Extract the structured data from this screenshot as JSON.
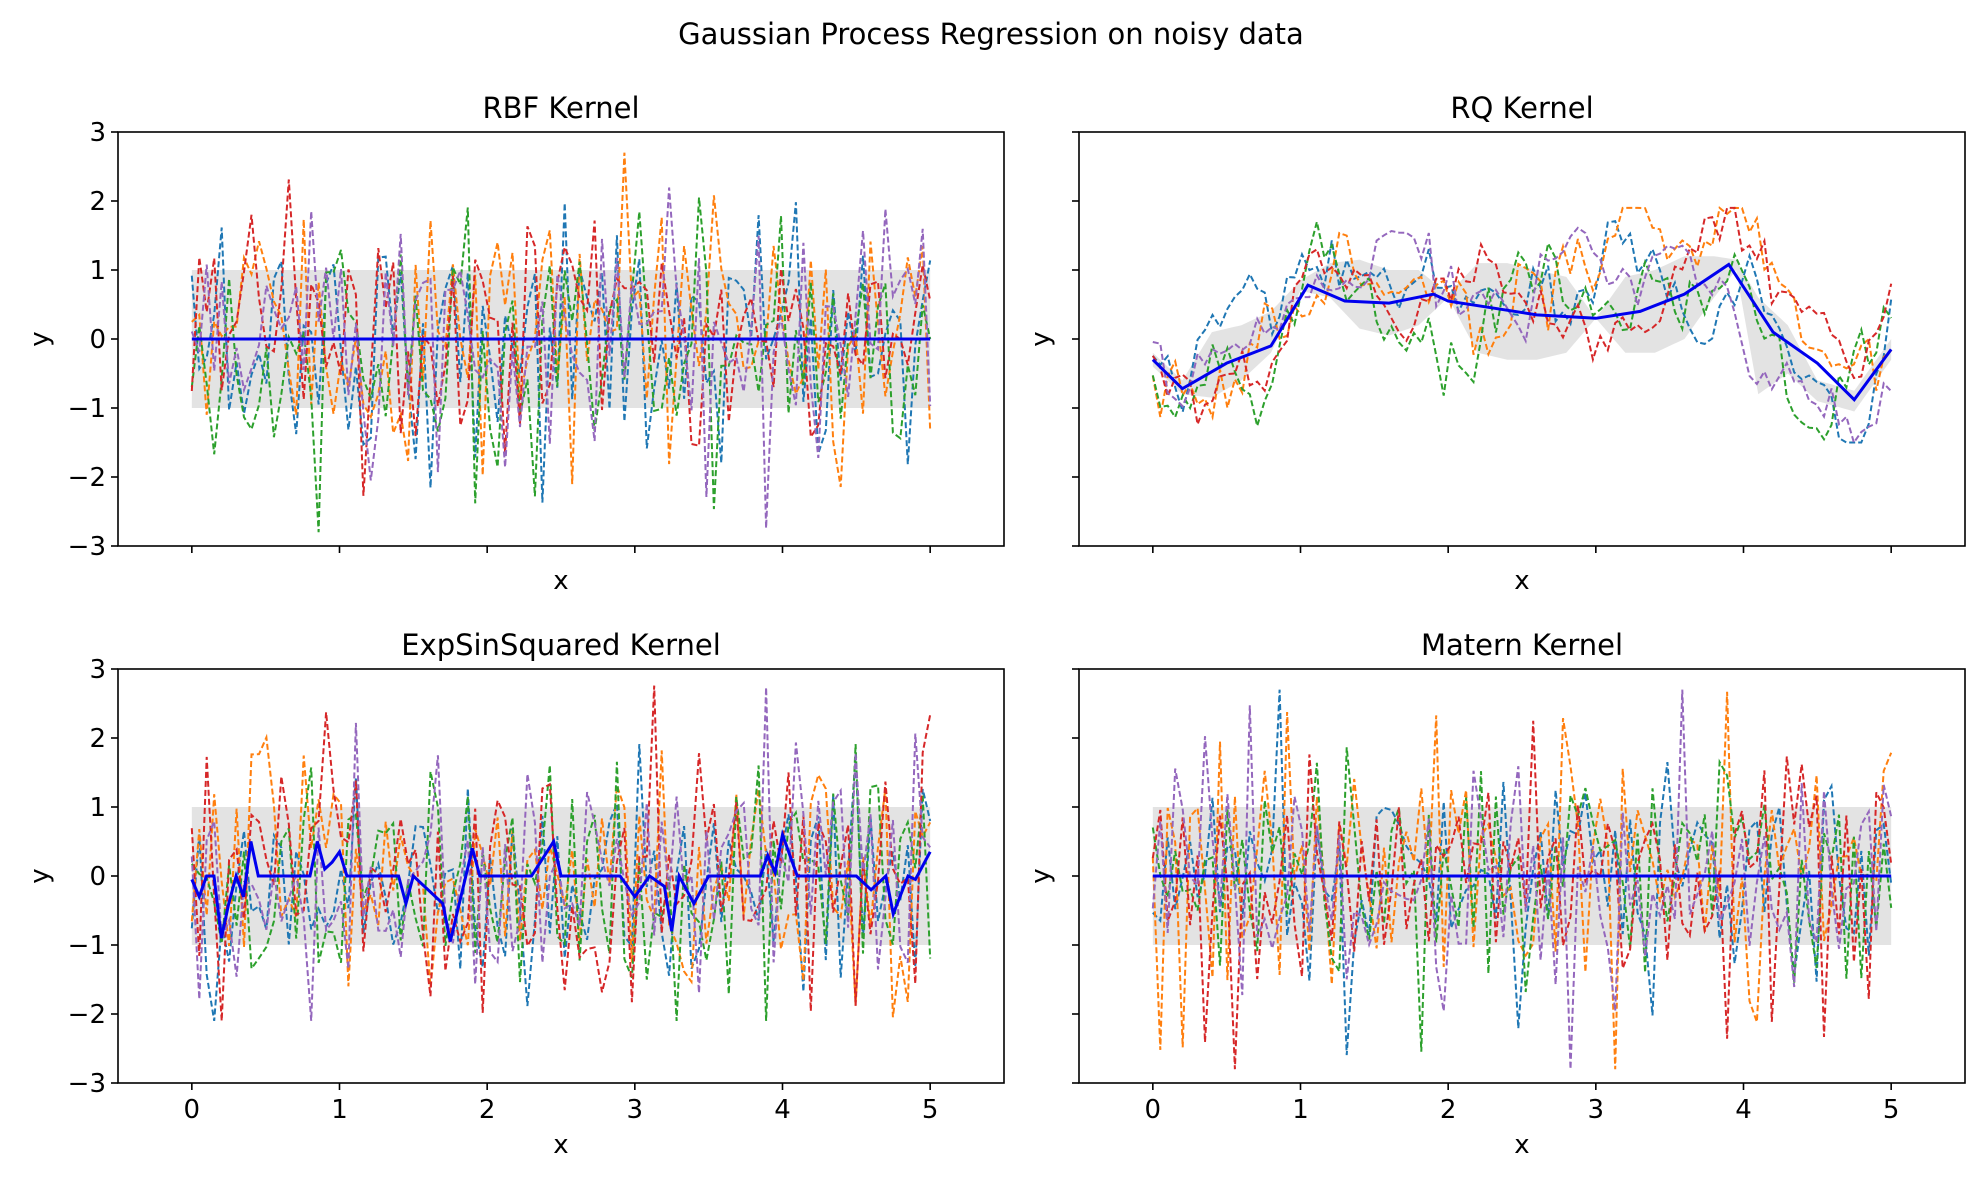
{
  "figure": {
    "suptitle": "Gaussian Process Regression on noisy data"
  },
  "colors": {
    "mean": "#0000ee",
    "band": "#d9d9d9",
    "samples": [
      "#1f77b4",
      "#ff7f0e",
      "#2ca02c",
      "#d62728",
      "#9467bd"
    ]
  },
  "chart_data": [
    {
      "type": "line",
      "title": "RBF Kernel",
      "xlabel": "x",
      "ylabel": "y",
      "xlim": [
        -0.5,
        5.5
      ],
      "ylim": [
        -3,
        3
      ],
      "xticks": [
        0,
        1,
        2,
        3,
        4,
        5
      ],
      "yticks": [
        -3,
        -2,
        -1,
        0,
        1,
        2,
        3
      ],
      "show_xticklabels": false,
      "show_yticklabels": true,
      "mean": {
        "x": [
          0,
          5
        ],
        "y": [
          0,
          0
        ]
      },
      "band": {
        "x": [
          0,
          5
        ],
        "lower": [
          -1,
          -1
        ],
        "upper": [
          1,
          1
        ]
      },
      "samples": {
        "count": 5,
        "n_points": 100,
        "style": "dashed",
        "y_range": [
          -2.8,
          2.7
        ],
        "roughness": 1.0
      }
    },
    {
      "type": "line",
      "title": "RQ Kernel",
      "xlabel": "x",
      "ylabel": "y",
      "xlim": [
        -0.5,
        5.5
      ],
      "ylim": [
        -3,
        3
      ],
      "xticks": [
        0,
        1,
        2,
        3,
        4,
        5
      ],
      "yticks": [
        -3,
        -2,
        -1,
        0,
        1,
        2,
        3
      ],
      "show_xticklabels": false,
      "show_yticklabels": false,
      "mean": {
        "x": [
          0,
          0.2,
          0.5,
          0.8,
          1.05,
          1.3,
          1.6,
          1.9,
          2.0,
          2.3,
          2.6,
          3.0,
          3.3,
          3.6,
          3.9,
          4.2,
          4.5,
          4.75,
          5.0
        ],
        "y": [
          -0.3,
          -0.72,
          -0.35,
          -0.1,
          0.78,
          0.55,
          0.52,
          0.65,
          0.55,
          0.45,
          0.35,
          0.3,
          0.4,
          0.65,
          1.08,
          0.1,
          -0.35,
          -0.88,
          -0.15
        ]
      },
      "band": {
        "x": [
          0,
          0.2,
          0.4,
          0.6,
          0.8,
          1.0,
          1.2,
          1.4,
          1.6,
          1.8,
          2.0,
          2.2,
          2.4,
          2.6,
          2.8,
          3.0,
          3.2,
          3.4,
          3.6,
          3.8,
          3.95,
          4.1,
          4.3,
          4.5,
          4.75,
          5.0
        ],
        "lower": [
          -0.4,
          -0.8,
          -0.85,
          -0.6,
          -0.2,
          0.7,
          0.6,
          0.15,
          0.05,
          0.2,
          0.6,
          -0.2,
          -0.3,
          -0.3,
          -0.2,
          0.3,
          -0.2,
          -0.2,
          0.0,
          0.6,
          1.0,
          -0.8,
          -0.5,
          -0.9,
          -1.05,
          -0.3
        ],
        "upper": [
          -0.2,
          -0.6,
          0.1,
          0.2,
          0.4,
          0.85,
          1.1,
          1.15,
          1.0,
          1.0,
          0.65,
          1.1,
          1.1,
          1.0,
          0.9,
          0.3,
          0.9,
          1.0,
          1.2,
          1.2,
          1.15,
          0.6,
          0.2,
          -0.6,
          -0.75,
          0.0
        ]
      },
      "samples": {
        "count": 5,
        "n_points": 100,
        "style": "dashed",
        "y_range": [
          -1.5,
          1.9
        ],
        "roughness": 0.3
      }
    },
    {
      "type": "line",
      "title": "ExpSinSquared Kernel",
      "xlabel": "x",
      "ylabel": "y",
      "xlim": [
        -0.5,
        5.5
      ],
      "ylim": [
        -3,
        3
      ],
      "xticks": [
        0,
        1,
        2,
        3,
        4,
        5
      ],
      "yticks": [
        -3,
        -2,
        -1,
        0,
        1,
        2,
        3
      ],
      "show_xticklabels": true,
      "show_yticklabels": true,
      "xticklabels": [
        "0",
        "1",
        "2",
        "3",
        "4",
        "5"
      ],
      "mean": {
        "x": [
          0,
          0.05,
          0.1,
          0.15,
          0.2,
          0.25,
          0.3,
          0.35,
          0.4,
          0.45,
          0.5,
          0.8,
          0.85,
          0.9,
          0.95,
          1.0,
          1.05,
          1.1,
          1.4,
          1.45,
          1.5,
          1.7,
          1.75,
          1.9,
          1.95,
          2.0,
          2.3,
          2.45,
          2.5,
          2.55,
          2.65,
          2.9,
          3.0,
          3.1,
          3.2,
          3.25,
          3.3,
          3.4,
          3.5,
          3.55,
          3.6,
          3.85,
          3.9,
          3.95,
          4.0,
          4.1,
          4.2,
          4.5,
          4.6,
          4.7,
          4.75,
          4.85,
          4.9,
          5.0
        ],
        "y": [
          -0.05,
          -0.3,
          0.0,
          0.0,
          -0.9,
          -0.4,
          0.0,
          -0.3,
          0.5,
          0.0,
          0.0,
          0.0,
          0.5,
          0.1,
          0.2,
          0.35,
          0.0,
          0.0,
          0.0,
          -0.4,
          0.0,
          -0.4,
          -0.95,
          0.4,
          0.0,
          0.0,
          0.0,
          0.5,
          0.0,
          0.0,
          0.0,
          0.0,
          -0.3,
          0.0,
          -0.15,
          -0.8,
          0.0,
          -0.4,
          0.0,
          0.0,
          0.0,
          0.0,
          0.3,
          0.05,
          0.6,
          0.0,
          0.0,
          0.0,
          -0.2,
          0.0,
          -0.55,
          0.0,
          -0.05,
          0.35
        ]
      },
      "band": {
        "x": [
          0,
          5
        ],
        "lower": [
          -1,
          -1
        ],
        "upper": [
          1,
          1
        ]
      },
      "samples": {
        "count": 5,
        "n_points": 100,
        "style": "dashed",
        "y_range": [
          -2.1,
          3.0
        ],
        "roughness": 1.0
      }
    },
    {
      "type": "line",
      "title": "Matern Kernel",
      "xlabel": "x",
      "ylabel": "y",
      "xlim": [
        -0.5,
        5.5
      ],
      "ylim": [
        -3,
        3
      ],
      "xticks": [
        0,
        1,
        2,
        3,
        4,
        5
      ],
      "yticks": [
        -3,
        -2,
        -1,
        0,
        1,
        2,
        3
      ],
      "show_xticklabels": true,
      "show_yticklabels": false,
      "xticklabels": [
        "0",
        "1",
        "2",
        "3",
        "4",
        "5"
      ],
      "mean": {
        "x": [
          0,
          5
        ],
        "y": [
          0,
          0
        ]
      },
      "band": {
        "x": [
          0,
          5
        ],
        "lower": [
          -1,
          -1
        ],
        "upper": [
          1,
          1
        ]
      },
      "samples": {
        "count": 5,
        "n_points": 100,
        "style": "dashed",
        "y_range": [
          -2.8,
          2.7
        ],
        "roughness": 1.0
      }
    }
  ],
  "yticklabels": [
    "−3",
    "−2",
    "−1",
    "0",
    "1",
    "2",
    "3"
  ]
}
